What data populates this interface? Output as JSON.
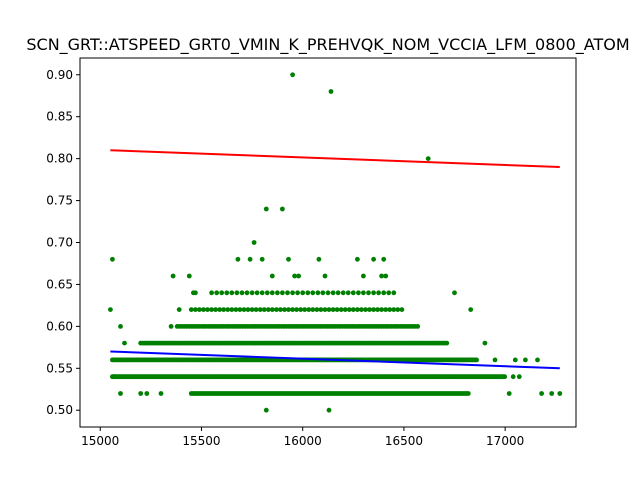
{
  "chart_data": {
    "type": "scatter",
    "title": "SCN_GRT::ATSPEED_GRT0_VMIN_K_PREHVQK_NOM_VCCIA_LFM_0800_ATOM",
    "xlabel": "",
    "ylabel": "",
    "xlim": [
      14900,
      17350
    ],
    "ylim": [
      0.48,
      0.92
    ],
    "xticks": [
      15000,
      15500,
      16000,
      16500,
      17000
    ],
    "xtick_labels": [
      "15000",
      "15500",
      "16000",
      "16500",
      "17000"
    ],
    "yticks": [
      0.5,
      0.55,
      0.6,
      0.65,
      0.7,
      0.75,
      0.8,
      0.85,
      0.9
    ],
    "ytick_labels": [
      "0.50",
      "0.55",
      "0.60",
      "0.65",
      "0.70",
      "0.75",
      "0.80",
      "0.85",
      "0.90"
    ],
    "grid": false,
    "colors": {
      "points": "#008000",
      "upper_line": "#ff0000",
      "lower_line": "#0000ff"
    },
    "points": [
      [
        15950,
        0.9
      ],
      [
        16140,
        0.88
      ],
      [
        16620,
        0.8
      ],
      [
        15820,
        0.74
      ],
      [
        15900,
        0.74
      ],
      [
        15760,
        0.7
      ],
      [
        15060,
        0.68
      ],
      [
        15680,
        0.68
      ],
      [
        15740,
        0.68
      ],
      [
        15800,
        0.68
      ],
      [
        15930,
        0.68
      ],
      [
        16080,
        0.68
      ],
      [
        16270,
        0.68
      ],
      [
        16350,
        0.68
      ],
      [
        16400,
        0.68
      ],
      [
        15360,
        0.66
      ],
      [
        15440,
        0.66
      ],
      [
        15850,
        0.66
      ],
      [
        15960,
        0.66
      ],
      [
        15980,
        0.66
      ],
      [
        16110,
        0.66
      ],
      [
        16300,
        0.66
      ],
      [
        16390,
        0.66
      ],
      [
        16410,
        0.66
      ],
      [
        16750,
        0.64
      ],
      [
        15460,
        0.64
      ],
      [
        15470,
        0.64
      ],
      [
        16830,
        0.62
      ],
      [
        15050,
        0.62
      ],
      [
        15390,
        0.62
      ],
      [
        15100,
        0.6
      ],
      [
        15350,
        0.6
      ],
      [
        15120,
        0.58
      ],
      [
        16900,
        0.58
      ],
      [
        17050,
        0.56
      ],
      [
        17100,
        0.56
      ],
      [
        17160,
        0.56
      ],
      [
        16950,
        0.56
      ],
      [
        17040,
        0.54
      ],
      [
        17070,
        0.54
      ],
      [
        15070,
        0.54
      ],
      [
        15820,
        0.5
      ],
      [
        16130,
        0.5
      ],
      [
        15100,
        0.52
      ],
      [
        15200,
        0.52
      ],
      [
        15230,
        0.52
      ],
      [
        15300,
        0.52
      ],
      [
        17180,
        0.52
      ],
      [
        17230,
        0.52
      ],
      [
        17270,
        0.52
      ],
      [
        17020,
        0.52
      ]
    ],
    "bands": [
      {
        "y": 0.64,
        "x_from": 15550,
        "x_to": 16450,
        "step": 25
      },
      {
        "y": 0.62,
        "x_from": 15450,
        "x_to": 16500,
        "step": 20
      },
      {
        "y": 0.6,
        "x_from": 15380,
        "x_to": 16570,
        "step": 12
      },
      {
        "y": 0.58,
        "x_from": 15200,
        "x_to": 16720,
        "step": 9
      },
      {
        "y": 0.56,
        "x_from": 15060,
        "x_to": 16860,
        "step": 7
      },
      {
        "y": 0.54,
        "x_from": 15060,
        "x_to": 17000,
        "step": 6
      },
      {
        "y": 0.52,
        "x_from": 15450,
        "x_to": 16820,
        "step": 8
      }
    ],
    "lines": [
      {
        "name": "",
        "color": "#ff0000",
        "x": [
          15050,
          17270
        ],
        "y": [
          0.81,
          0.79
        ]
      },
      {
        "name": "",
        "color": "#0000ff",
        "x": [
          15050,
          17270
        ],
        "y": [
          0.57,
          0.55
        ]
      }
    ]
  }
}
